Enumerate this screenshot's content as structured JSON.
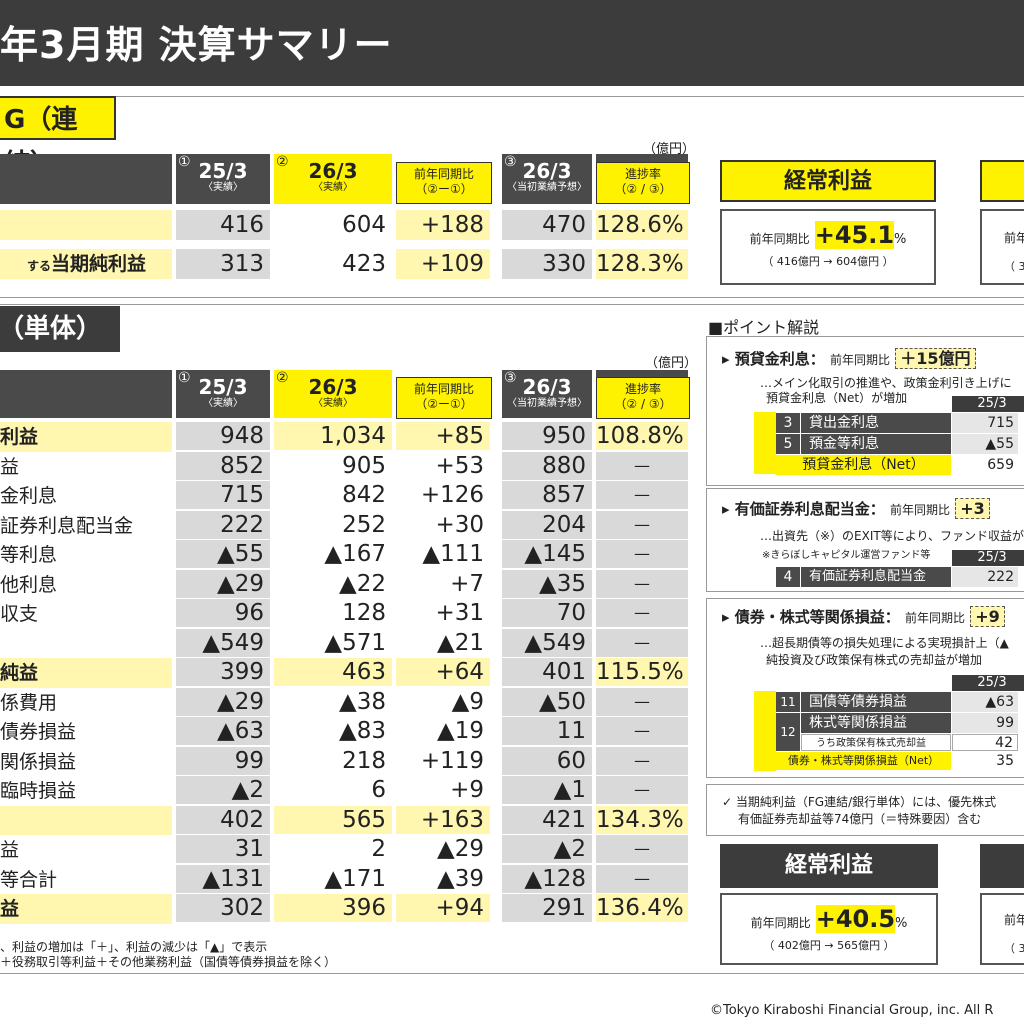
{
  "title": "年3月期 決算サマリー",
  "fg": {
    "tag": "G（連結）",
    "unit": "（億円）",
    "headers": {
      "c1_num": "①",
      "c1_main": "25/3",
      "c1_sub": "〈実績〉",
      "c2_num": "②",
      "c2_main": "26/3",
      "c2_sub": "〈実績〉",
      "c3_main": "前年同期比",
      "c3_sub": "（②ー①）",
      "c4_num": "③",
      "c4_main": "26/3",
      "c4_sub": "〈当初業績予想〉",
      "c5_main": "進捗率",
      "c5_sub": "（② / ③）"
    },
    "rows": [
      {
        "label": "",
        "v1": "416",
        "v2": "604",
        "v3": "+188",
        "v4": "470",
        "v5": "128.6%"
      },
      {
        "label_small": "する",
        "label": "当期純利益",
        "v1": "313",
        "v2": "423",
        "v3": "+109",
        "v4": "330",
        "v5": "128.3%"
      }
    ],
    "kpi": {
      "head": "経常利益",
      "pre": "前年同期比",
      "value": "+45.1",
      "pct": "%",
      "detail": "（ 416億円 → 604億円 ）"
    },
    "kpi2": {
      "pre": "前年",
      "detail": "（ 3"
    }
  },
  "bank": {
    "tag": "（単体）",
    "unit": "（億円）",
    "headers": {
      "c1_num": "①",
      "c1_main": "25/3",
      "c1_sub": "〈実績〉",
      "c2_num": "②",
      "c2_main": "26/3",
      "c2_sub": "〈実績〉",
      "c3_main": "前年同期比",
      "c3_sub": "（②ー①）",
      "c4_num": "③",
      "c4_main": "26/3",
      "c4_sub": "〈当初業績予想〉",
      "c5_main": "進捗率",
      "c5_sub": "（② / ③）"
    },
    "rows": [
      {
        "label": "利益",
        "v1": "948",
        "v2": "1,034",
        "v3": "+85",
        "v4": "950",
        "v5": "108.8%",
        "hl": true
      },
      {
        "label": "益",
        "v1": "852",
        "v2": "905",
        "v3": "+53",
        "v4": "880",
        "v5": "—"
      },
      {
        "label": "金利息",
        "v1": "715",
        "v2": "842",
        "v3": "+126",
        "v4": "857",
        "v5": "—"
      },
      {
        "label": "証券利息配当金",
        "v1": "222",
        "v2": "252",
        "v3": "+30",
        "v4": "204",
        "v5": "—"
      },
      {
        "label": "等利息",
        "v1": "▲55",
        "v2": "▲167",
        "v3": "▲111",
        "v4": "▲145",
        "v5": "—"
      },
      {
        "label": "他利息",
        "v1": "▲29",
        "v2": "▲22",
        "v3": "+7",
        "v4": "▲35",
        "v5": "—"
      },
      {
        "label": "収支",
        "v1": "96",
        "v2": "128",
        "v3": "+31",
        "v4": "70",
        "v5": "—"
      },
      {
        "label": "",
        "v1": "▲549",
        "v2": "▲571",
        "v3": "▲21",
        "v4": "▲549",
        "v5": "—"
      },
      {
        "label": "純益",
        "v1": "399",
        "v2": "463",
        "v3": "+64",
        "v4": "401",
        "v5": "115.5%",
        "hl": true
      },
      {
        "label": "係費用",
        "v1": "▲29",
        "v2": "▲38",
        "v3": "▲9",
        "v4": "▲50",
        "v5": "—"
      },
      {
        "label": "債券損益",
        "v1": "▲63",
        "v2": "▲83",
        "v3": "▲19",
        "v4": "11",
        "v5": "—"
      },
      {
        "label": "関係損益",
        "v1": "99",
        "v2": "218",
        "v3": "+119",
        "v4": "60",
        "v5": "—"
      },
      {
        "label": "臨時損益",
        "v1": "▲2",
        "v2": "6",
        "v3": "+9",
        "v4": "▲1",
        "v5": "—"
      },
      {
        "label": "",
        "v1": "402",
        "v2": "565",
        "v3": "+163",
        "v4": "421",
        "v5": "134.3%",
        "hl": true
      },
      {
        "label": "益",
        "v1": "31",
        "v2": "2",
        "v3": "▲29",
        "v4": "▲2",
        "v5": "—"
      },
      {
        "label": "等合計",
        "v1": "▲131",
        "v2": "▲171",
        "v3": "▲39",
        "v4": "▲128",
        "v5": "—"
      },
      {
        "label": "益",
        "v1": "302",
        "v2": "396",
        "v3": "+94",
        "v4": "291",
        "v5": "136.4%",
        "hl": true
      }
    ],
    "foot1": "、利益の増加は「＋」、利益の減少は「▲」で表示",
    "foot2": "＋役務取引等利益＋その他業務利益（国債等債券損益を除く）",
    "kpi": {
      "head": "経常利益",
      "pre": "前年同期比",
      "value": "+40.5",
      "pct": "%",
      "detail": "（ 402億円 → 565億円 ）"
    },
    "kpi2": {
      "pre": "前年",
      "detail": "（ 3"
    }
  },
  "points": {
    "heading": "■ポイント解説",
    "p1": {
      "title": "▸ 預貸金利息：",
      "pre": "前年同期比",
      "value": "＋15億円",
      "text1": "…メイン化取引の推進や、政策金利引き上げに",
      "text2": "預貸金利息（Net）が増加",
      "col": "25/3",
      "rows": [
        {
          "no": "3",
          "name": "貸出金利息",
          "val": "715"
        },
        {
          "no": "5",
          "name": "預金等利息",
          "val": "▲55"
        }
      ],
      "net_name": "預貸金利息（Net）",
      "net_val": "659"
    },
    "p2": {
      "title": "▸ 有価証券利息配当金：",
      "pre": "前年同期比",
      "value": "+3",
      "text1": "…出資先（※）のEXIT等により、ファンド収益が",
      "text2": "※きらぼしキャピタル運営ファンド等",
      "col": "25/3",
      "rows": [
        {
          "no": "4",
          "name": "有価証券利息配当金",
          "val": "222"
        }
      ]
    },
    "p3": {
      "title": "▸ 債券・株式等関係損益：",
      "pre": "前年同期比",
      "value": "+9",
      "text1": "…超長期債等の損失処理による実現損計上（▲",
      "text2": "純投資及び政策保有株式の売却益が増加",
      "col": "25/3",
      "rows": [
        {
          "no": "11",
          "name": "国債等債券損益",
          "val": "▲63"
        },
        {
          "no": "12",
          "name": "株式等関係損益",
          "val": "99"
        },
        {
          "no": "",
          "name": "うち政策保有株式売却益",
          "val": "42"
        }
      ],
      "net_name": "債券・株式等関係損益（Net）",
      "net_val": "35"
    },
    "note1": "✓ 当期純利益（FG連結/銀行単体）には、優先株式",
    "note2": "有価証券売却益等74億円（＝特殊要因）含む"
  },
  "copyright": "©Tokyo Kiraboshi Financial Group, inc. All R"
}
